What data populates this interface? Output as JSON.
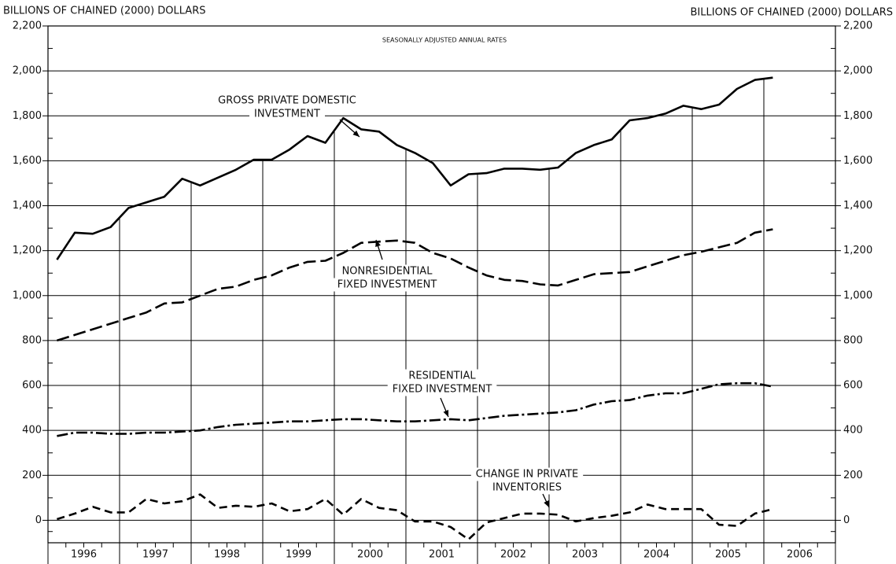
{
  "chart_data": {
    "type": "line",
    "y_axis_label": "BILLIONS OF CHAINED (2000) DOLLARS",
    "y2_axis_label": "BILLIONS OF CHAINED (2000) DOLLARS",
    "subtitle": "SEASONALLY ADJUSTED ANNUAL RATES",
    "xlim": [
      1996,
      2007
    ],
    "xticks": [
      1996,
      1997,
      1998,
      1999,
      2000,
      2001,
      2002,
      2003,
      2004,
      2005,
      2006,
      2007
    ],
    "year_labels": [
      "1996",
      "1997",
      "1998",
      "1999",
      "2000",
      "2001",
      "2002",
      "2003",
      "2004",
      "2005",
      "2006"
    ],
    "x": [
      1996.125,
      1996.375,
      1996.625,
      1996.875,
      1997.125,
      1997.375,
      1997.625,
      1997.875,
      1998.125,
      1998.375,
      1998.625,
      1998.875,
      1999.125,
      1999.375,
      1999.625,
      1999.875,
      2000.125,
      2000.375,
      2000.625,
      2000.875,
      2001.125,
      2001.375,
      2001.625,
      2001.875,
      2002.125,
      2002.375,
      2002.625,
      2002.875,
      2003.125,
      2003.375,
      2003.625,
      2003.875,
      2004.125,
      2004.375,
      2004.625,
      2004.875,
      2005.125,
      2005.375,
      2005.625,
      2005.875,
      2006.125
    ],
    "ylim": [
      -100,
      2200
    ],
    "yticks": [
      0,
      200,
      400,
      600,
      800,
      {
        "value": 1000,
        "label": "1,000"
      },
      {
        "value": 1200,
        "label": "1,200"
      },
      {
        "value": 1400,
        "label": "1,400"
      },
      {
        "value": 1600,
        "label": "1,600"
      },
      {
        "value": 1800,
        "label": "1,800"
      },
      {
        "value": 2000,
        "label": "2,000"
      },
      {
        "value": 2200,
        "label": "2,200"
      }
    ],
    "grid": true,
    "series": [
      {
        "name": [
          "GROSS PRIVATE DOMESTIC",
          "INVESTMENT"
        ],
        "color": "#000000",
        "style": "solid",
        "values": [
          1160,
          1280,
          1275,
          1305,
          1390,
          1415,
          1440,
          1520,
          1490,
          1525,
          1560,
          1605,
          1605,
          1650,
          1710,
          1680,
          1790,
          1740,
          1730,
          1670,
          1635,
          1590,
          1490,
          1540,
          1545,
          1565,
          1565,
          1560,
          1570,
          1635,
          1670,
          1695,
          1780,
          1790,
          1810,
          1845,
          1830,
          1850,
          1920,
          1960,
          1970
        ]
      },
      {
        "name": [
          "NONRESIDENTIAL",
          "FIXED INVESTMENT"
        ],
        "color": "#000000",
        "style": "dashed",
        "values": [
          800,
          825,
          850,
          875,
          900,
          925,
          965,
          970,
          1000,
          1030,
          1040,
          1070,
          1090,
          1125,
          1150,
          1155,
          1190,
          1235,
          1240,
          1245,
          1235,
          1190,
          1165,
          1125,
          1090,
          1070,
          1065,
          1050,
          1045,
          1070,
          1095,
          1100,
          1105,
          1130,
          1155,
          1180,
          1195,
          1215,
          1235,
          1280,
          1295
        ]
      },
      {
        "name": [
          "RESIDENTIAL",
          "FIXED INVESTMENT"
        ],
        "color": "#000000",
        "style": "dashdot",
        "values": [
          375,
          390,
          390,
          385,
          385,
          390,
          390,
          395,
          400,
          415,
          425,
          430,
          435,
          440,
          440,
          445,
          450,
          450,
          445,
          440,
          440,
          445,
          450,
          445,
          455,
          465,
          470,
          475,
          480,
          490,
          515,
          530,
          535,
          555,
          565,
          565,
          585,
          605,
          610,
          610,
          595
        ]
      },
      {
        "name": [
          "CHANGE IN PRIVATE",
          "INVENTORIES"
        ],
        "color": "#000000",
        "style": "shortdash",
        "values": [
          5,
          30,
          60,
          35,
          35,
          95,
          75,
          85,
          115,
          55,
          65,
          60,
          75,
          40,
          50,
          95,
          25,
          95,
          55,
          45,
          -5,
          -5,
          -30,
          -85,
          -10,
          10,
          30,
          30,
          25,
          -5,
          10,
          20,
          35,
          70,
          50,
          50,
          50,
          -20,
          -25,
          30,
          50
        ]
      }
    ]
  }
}
